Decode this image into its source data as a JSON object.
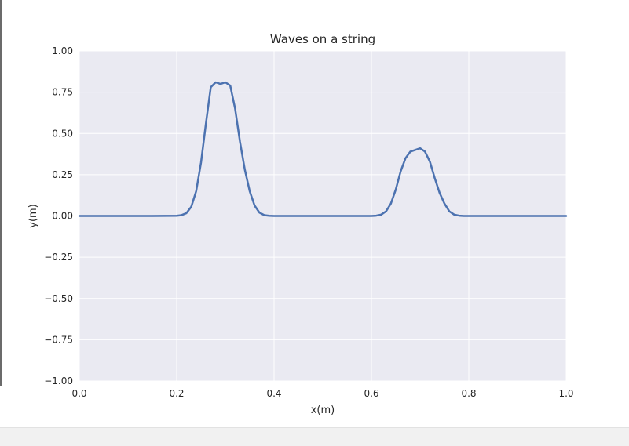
{
  "chart_data": {
    "type": "line",
    "title": "Waves on a string",
    "xlabel": "x(m)",
    "ylabel": "y(m)",
    "xlim": [
      0.0,
      1.0
    ],
    "ylim": [
      -1.0,
      1.0
    ],
    "grid": true,
    "x_ticks": [
      "0.0",
      "0.2",
      "0.4",
      "0.6",
      "0.8",
      "1.0"
    ],
    "y_ticks": [
      "−1.00",
      "−0.75",
      "−0.50",
      "−0.25",
      "0.00",
      "0.25",
      "0.50",
      "0.75",
      "1.00"
    ],
    "series": [
      {
        "color": "#4c72b0",
        "x": [
          0.0,
          0.05,
          0.1,
          0.15,
          0.2,
          0.21,
          0.22,
          0.23,
          0.24,
          0.25,
          0.26,
          0.27,
          0.28,
          0.29,
          0.3,
          0.31,
          0.32,
          0.33,
          0.34,
          0.35,
          0.36,
          0.37,
          0.38,
          0.39,
          0.4,
          0.45,
          0.5,
          0.55,
          0.6,
          0.61,
          0.62,
          0.63,
          0.64,
          0.65,
          0.66,
          0.67,
          0.68,
          0.69,
          0.7,
          0.71,
          0.72,
          0.73,
          0.74,
          0.75,
          0.76,
          0.77,
          0.78,
          0.79,
          0.8,
          0.85,
          0.9,
          0.95,
          1.0
        ],
        "y": [
          0.0,
          0.0,
          0.0,
          0.0,
          0.001,
          0.005,
          0.017,
          0.056,
          0.15,
          0.324,
          0.56,
          0.78,
          0.81,
          0.8,
          0.81,
          0.79,
          0.65,
          0.45,
          0.28,
          0.15,
          0.063,
          0.02,
          0.005,
          0.001,
          0.0,
          0.0,
          0.0,
          0.0,
          0.0,
          0.002,
          0.008,
          0.028,
          0.075,
          0.16,
          0.27,
          0.35,
          0.39,
          0.4,
          0.41,
          0.39,
          0.33,
          0.23,
          0.14,
          0.075,
          0.028,
          0.008,
          0.002,
          0.0,
          0.0,
          0.0,
          0.0,
          0.0,
          0.0
        ]
      }
    ]
  },
  "colors": {
    "plot_background": "#eaeaf2",
    "grid": "#ffffff",
    "line": "#4c72b0"
  }
}
